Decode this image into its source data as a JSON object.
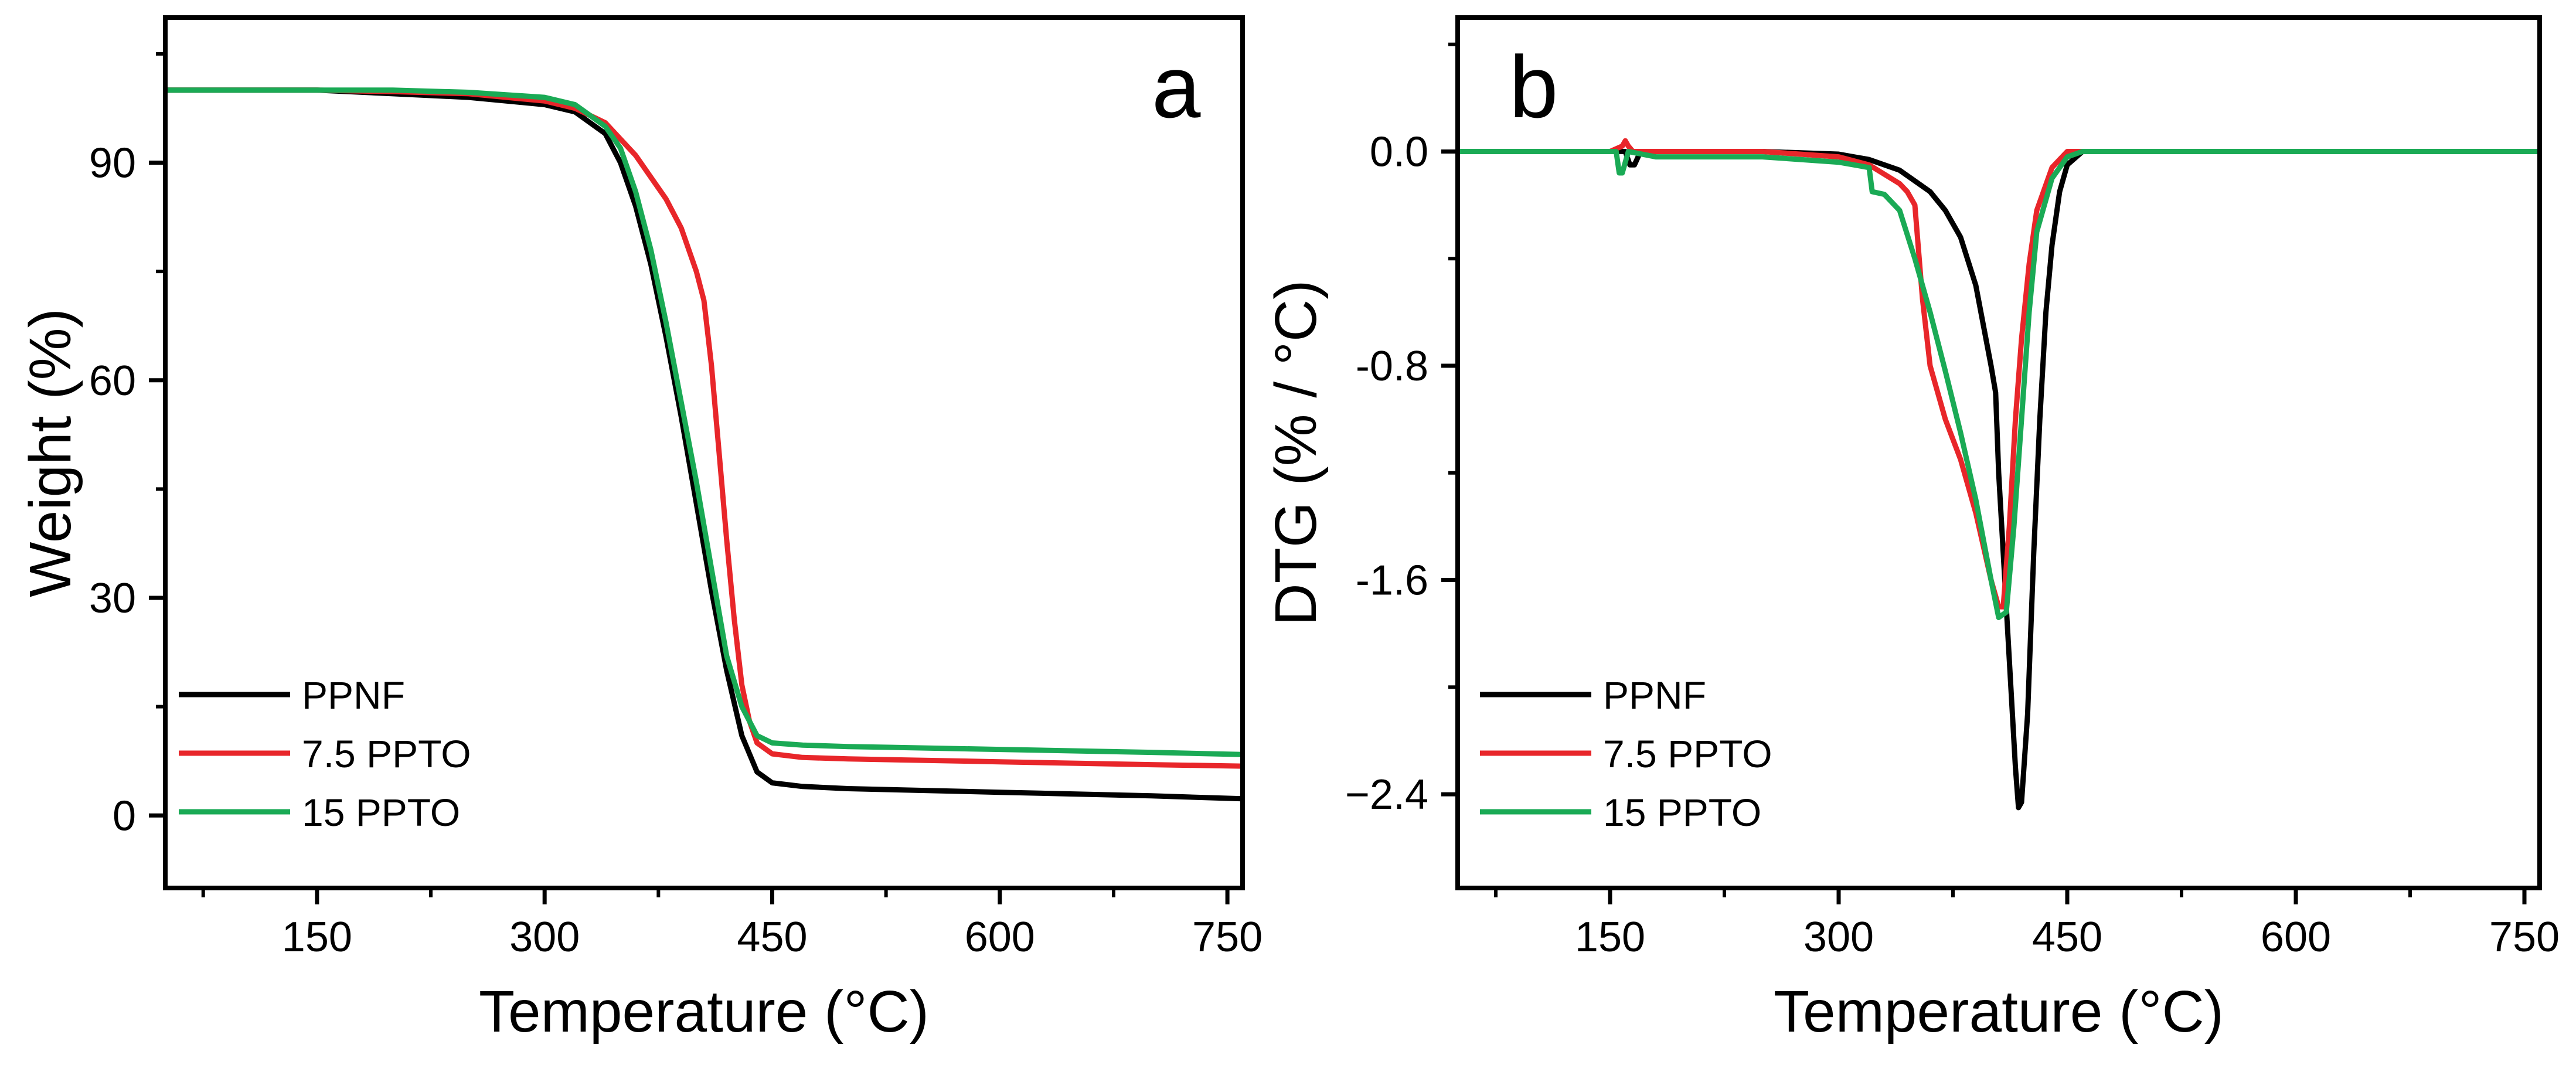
{
  "chart_data": [
    {
      "id": "a",
      "type": "line",
      "panel_label": "a",
      "xlabel": "Temperature (°C)",
      "ylabel": "Weight (%)",
      "xlim": [
        50,
        760
      ],
      "ylim": [
        -10,
        110
      ],
      "xticks": [
        150,
        300,
        450,
        600,
        750
      ],
      "yticks": [
        0,
        30,
        60,
        90
      ],
      "legend_position": "bottom-left",
      "series": [
        {
          "name": "PPNF",
          "color": "#000000",
          "x": [
            50,
            150,
            200,
            250,
            300,
            320,
            340,
            350,
            360,
            370,
            380,
            390,
            400,
            410,
            420,
            430,
            440,
            450,
            470,
            500,
            600,
            700,
            760
          ],
          "y": [
            100,
            100,
            99.5,
            99,
            98,
            97,
            94,
            90,
            84,
            76,
            66,
            55,
            43,
            31,
            20,
            11,
            6,
            4.5,
            4,
            3.7,
            3.2,
            2.7,
            2.3
          ]
        },
        {
          "name": "7.5 PPTO",
          "color": "#e8262a",
          "x": [
            50,
            150,
            200,
            250,
            300,
            320,
            340,
            360,
            370,
            380,
            390,
            400,
            405,
            410,
            415,
            420,
            425,
            430,
            435,
            440,
            450,
            470,
            500,
            600,
            700,
            760
          ],
          "y": [
            100,
            100,
            99.8,
            99.5,
            98.5,
            97.5,
            95.5,
            91,
            88,
            85,
            81,
            75,
            71,
            62,
            50,
            38,
            27,
            18,
            13,
            10,
            8.5,
            8,
            7.8,
            7.4,
            7,
            6.8
          ]
        },
        {
          "name": "15 PPTO",
          "color": "#1aaa55",
          "x": [
            50,
            150,
            200,
            250,
            300,
            320,
            340,
            350,
            360,
            370,
            380,
            390,
            400,
            410,
            420,
            430,
            440,
            450,
            470,
            500,
            600,
            700,
            760
          ],
          "y": [
            100,
            100,
            100,
            99.7,
            99,
            98,
            95,
            92,
            86,
            78,
            68,
            57,
            46,
            34,
            22,
            15,
            11,
            10,
            9.7,
            9.5,
            9.1,
            8.7,
            8.4
          ]
        }
      ]
    },
    {
      "id": "b",
      "type": "line",
      "panel_label": "b",
      "xlabel": "Temperature (°C)",
      "ylabel": "DTG (% / °C)",
      "xlim": [
        50,
        760
      ],
      "ylim": [
        -2.75,
        0.5
      ],
      "xticks": [
        150,
        300,
        450,
        600,
        750
      ],
      "yticks": [
        0.0,
        -0.8,
        -1.6,
        -2.4
      ],
      "ytick_labels": [
        "0.0",
        "-0.8",
        "-1.6",
        "−2.4"
      ],
      "legend_position": "bottom-left",
      "series": [
        {
          "name": "PPNF",
          "color": "#000000",
          "x": [
            50,
            150,
            160,
            163,
            166,
            170,
            250,
            300,
            320,
            340,
            360,
            370,
            380,
            390,
            400,
            403,
            405,
            408,
            412,
            416,
            418,
            420,
            424,
            428,
            432,
            436,
            440,
            445,
            450,
            460,
            500,
            600,
            700,
            760
          ],
          "y": [
            0,
            0,
            0,
            -0.05,
            -0.05,
            0,
            0,
            -0.01,
            -0.03,
            -0.07,
            -0.15,
            -0.22,
            -0.32,
            -0.5,
            -0.8,
            -0.9,
            -1.2,
            -1.5,
            -1.9,
            -2.3,
            -2.45,
            -2.43,
            -2.1,
            -1.5,
            -1.0,
            -0.6,
            -0.35,
            -0.15,
            -0.05,
            0,
            0,
            0,
            0,
            0
          ]
        },
        {
          "name": "7.5 PPTO",
          "color": "#e8262a",
          "x": [
            50,
            150,
            158,
            160,
            162,
            165,
            250,
            300,
            320,
            340,
            345,
            350,
            355,
            360,
            370,
            380,
            390,
            400,
            405,
            408,
            412,
            416,
            420,
            425,
            430,
            440,
            450,
            460,
            500,
            600,
            700,
            760
          ],
          "y": [
            0,
            0,
            0.02,
            0.04,
            0.02,
            0,
            0,
            -0.02,
            -0.05,
            -0.12,
            -0.15,
            -0.2,
            -0.55,
            -0.8,
            -1.0,
            -1.15,
            -1.35,
            -1.6,
            -1.7,
            -1.7,
            -1.4,
            -1.0,
            -0.7,
            -0.42,
            -0.22,
            -0.06,
            0,
            0,
            0,
            0,
            0,
            0
          ]
        },
        {
          "name": "15 PPTO",
          "color": "#1aaa55",
          "x": [
            50,
            150,
            154,
            156,
            158,
            162,
            180,
            200,
            250,
            300,
            320,
            322,
            330,
            340,
            350,
            360,
            370,
            380,
            390,
            400,
            405,
            410,
            415,
            420,
            425,
            430,
            440,
            450,
            460,
            500,
            600,
            700,
            760
          ],
          "y": [
            0,
            0,
            0,
            -0.08,
            -0.08,
            0,
            -0.02,
            -0.02,
            -0.02,
            -0.04,
            -0.06,
            -0.15,
            -0.16,
            -0.22,
            -0.4,
            -0.6,
            -0.82,
            -1.05,
            -1.3,
            -1.6,
            -1.74,
            -1.72,
            -1.4,
            -1.0,
            -0.6,
            -0.3,
            -0.1,
            -0.02,
            0,
            0,
            0,
            0,
            0
          ]
        }
      ]
    }
  ]
}
